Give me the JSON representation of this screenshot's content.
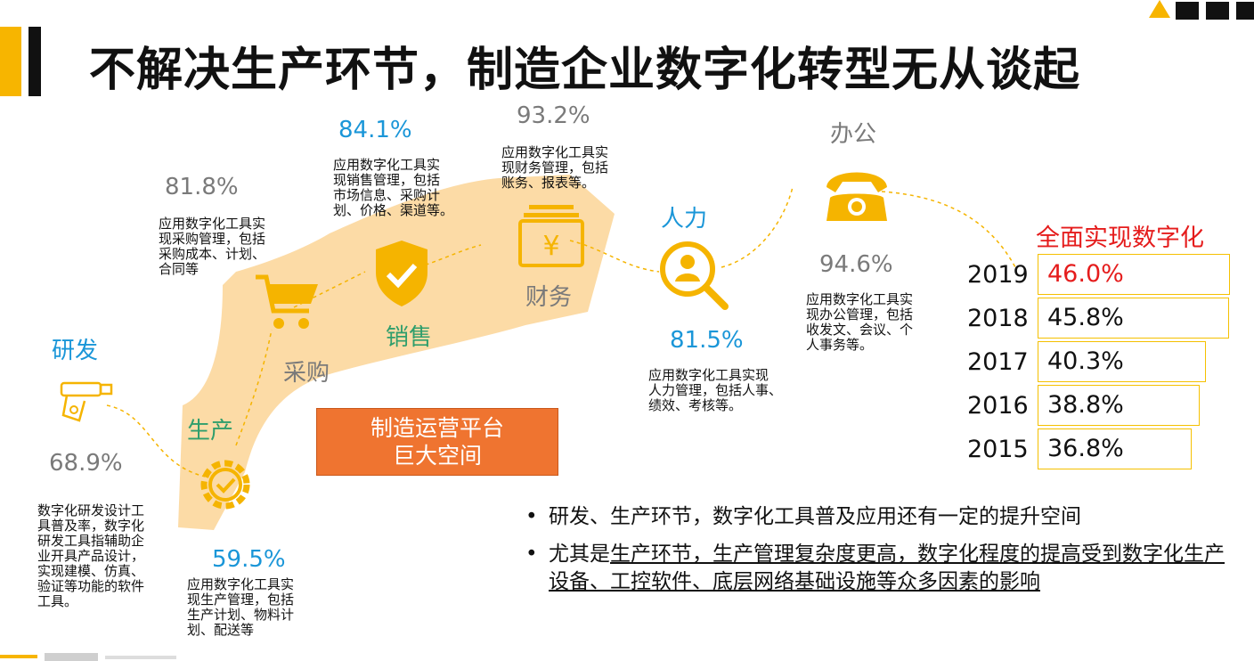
{
  "title": "不解决生产环节，制造企业数字化转型无从谈起",
  "stages": [
    {
      "name": "研发",
      "pct": "68.9%",
      "desc": "数字化研发设计工\n具普及率，数字化\n研发工具指辅助企\n业开具产品设计，\n实现建模、仿真、\n验证等功能的软件\n工具。",
      "icon": "spray-tool-icon"
    },
    {
      "name": "生产",
      "pct": "59.5%",
      "desc": "应用数字化工具实\n现生产管理，包括\n生产计划、物料计\n划、配送等",
      "icon": "gear-check-icon"
    },
    {
      "name": "采购",
      "pct": "81.8%",
      "desc": "应用数字化工具实\n现采购管理，包括\n采购成本、计划、\n合同等",
      "icon": "cart-icon"
    },
    {
      "name": "销售",
      "pct": "84.1%",
      "desc": "应用数字化工具实\n现销售管理，包括\n市场信息、采购计\n划、价格、渠道等。",
      "icon": "shield-check-icon"
    },
    {
      "name": "财务",
      "pct": "93.2%",
      "desc": "应用数字化工具实\n现财务管理，包括\n账务、报表等。",
      "icon": "yuan-wallet-icon"
    },
    {
      "name": "人力",
      "pct": "81.5%",
      "desc": "应用数字化工具实现\n人力管理，包括人事、\n绩效、考核等。",
      "icon": "person-search-icon"
    },
    {
      "name": "办公",
      "pct": "94.6%",
      "desc": "应用数字化工具实\n现办公管理，包括\n收发文、会议、个\n人事务等。",
      "icon": "telephone-icon"
    }
  ],
  "platform": {
    "line1": "制造运营平台",
    "line2": "巨大空间"
  },
  "chart_data": {
    "type": "bar",
    "title": "全面实现数字化",
    "categories": [
      "2019",
      "2018",
      "2017",
      "2016",
      "2015"
    ],
    "values": [
      46.0,
      45.8,
      40.3,
      38.8,
      36.8
    ],
    "labels": [
      "46.0%",
      "45.8%",
      "40.3%",
      "38.8%",
      "36.8%"
    ],
    "highlight_color": "#e51c1c",
    "bar_border_color": "#f5c000"
  },
  "bullets": {
    "b1": "研发、生产环节，数字化工具普及应用还有一定的提升空间",
    "b2_prefix": "尤其是",
    "b2_underlined": "生产环节，生产管理复杂度更高，数字化程度的提高受到数字化生产设备、工控软件、底层网络基础设施等众多因素的影响"
  },
  "colors": {
    "accent": "#f7b500",
    "blue": "#1a96d8",
    "green": "#2f9e6c",
    "orange": "#ef7430",
    "band": "#fbd596"
  }
}
